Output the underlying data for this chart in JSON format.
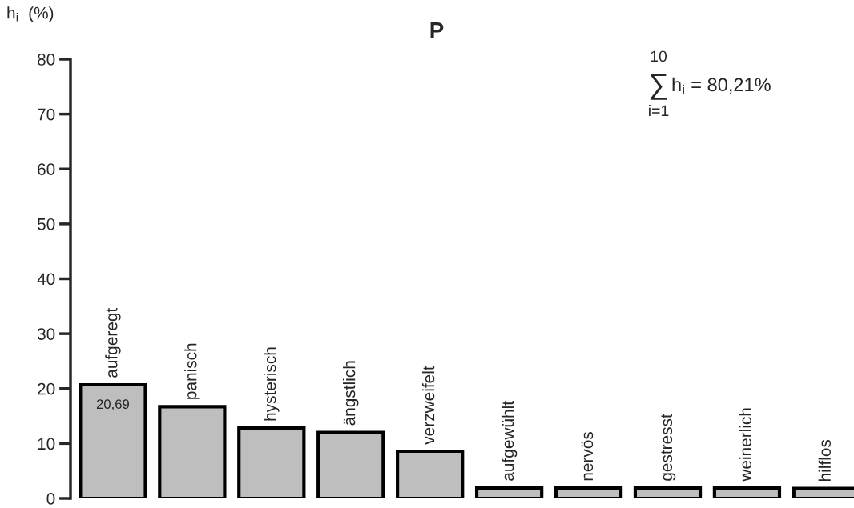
{
  "chart_data": {
    "type": "bar",
    "title": "P",
    "ylabel": "h$_{i}$  (%)",
    "categories": [
      "aufgeregt",
      "panisch",
      "hysterisch",
      "ängstlich",
      "verzweifelt",
      "aufgewühlt",
      "nervös",
      "gestresst",
      "weinerlich",
      "hilflos"
    ],
    "values": [
      20.69,
      16.7,
      12.8,
      12.0,
      8.6,
      1.9,
      1.9,
      1.9,
      1.9,
      1.8
    ],
    "value_labels": [
      "20,69",
      null,
      null,
      null,
      null,
      null,
      null,
      null,
      null,
      null
    ],
    "color": "#bebebe",
    "ylim": [
      0,
      80
    ],
    "yticks": [
      0,
      10,
      20,
      30,
      40,
      50,
      60,
      70,
      80
    ],
    "annotations": [
      "10",
      "∑",
      "i=1",
      "h$_{i}$ = 80,21%"
    ],
    "grid": false,
    "legend": false
  }
}
